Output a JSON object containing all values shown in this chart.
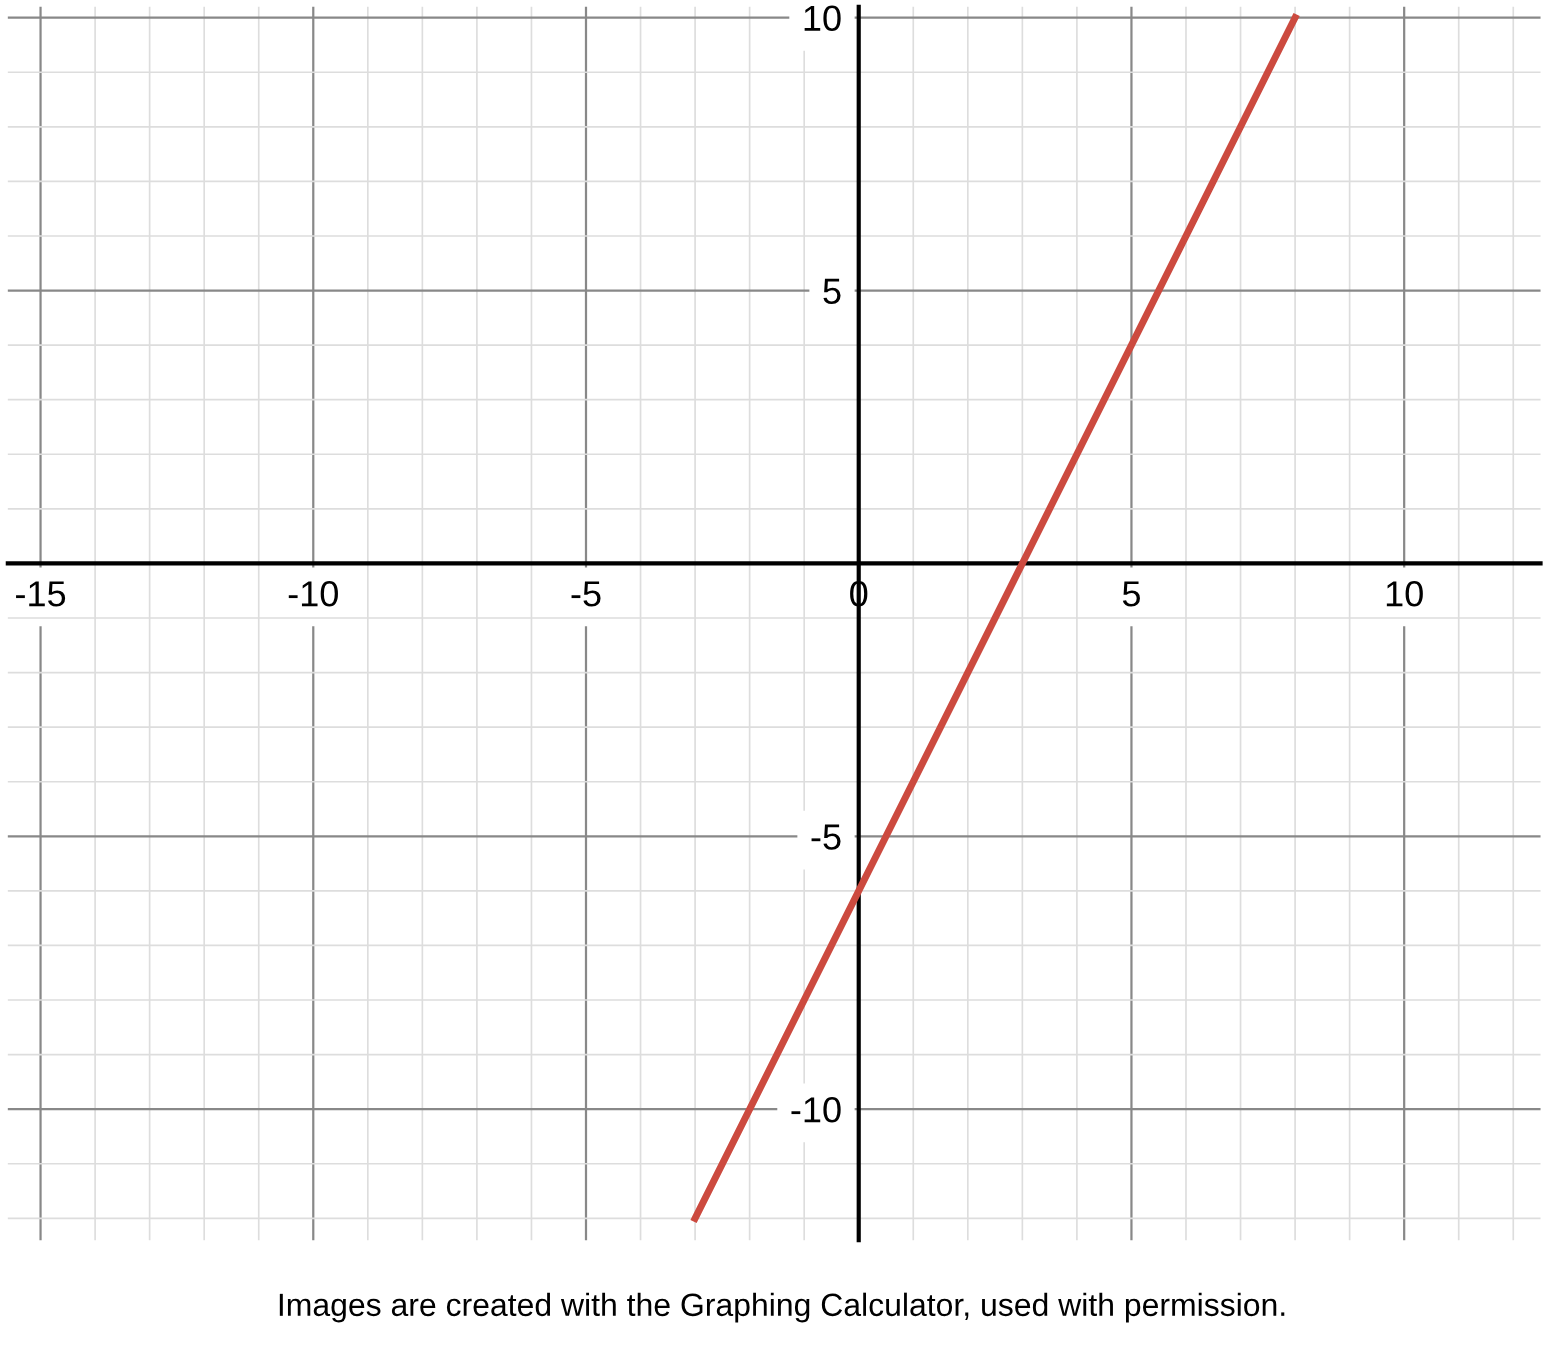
{
  "chart_data": {
    "type": "line",
    "x": [
      -3,
      8
    ],
    "series": [
      {
        "color": "#cc4a3f",
        "values": [
          -12,
          10
        ]
      }
    ],
    "xlim": [
      -15.6,
      12.5
    ],
    "ylim": [
      -12.4,
      10.2
    ],
    "xticks": [
      -15,
      -10,
      -5,
      0,
      5,
      10
    ],
    "yticks": [
      -10,
      -5,
      5,
      10
    ],
    "grid": true,
    "legend": false,
    "marker": "none",
    "line_style": "solid",
    "annotations": [
      "Images are created with the Graphing Calculator, used with permission."
    ]
  }
}
